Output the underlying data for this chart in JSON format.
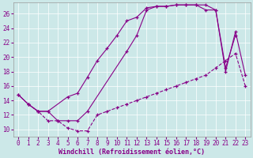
{
  "background_color": "#cce8e8",
  "line_color": "#880088",
  "xlabel": "Windchill (Refroidissement éolien,°C)",
  "xlabel_fontsize": 6,
  "tick_fontsize": 5.5,
  "xlim": [
    -0.5,
    23.5
  ],
  "ylim": [
    9.0,
    27.5
  ],
  "yticks": [
    10,
    12,
    14,
    16,
    18,
    20,
    22,
    24,
    26
  ],
  "xticks": [
    0,
    1,
    2,
    3,
    4,
    5,
    6,
    7,
    8,
    9,
    10,
    11,
    12,
    13,
    14,
    15,
    16,
    17,
    18,
    19,
    20,
    21,
    22,
    23
  ],
  "series_dashed_x": [
    1,
    2,
    3,
    4,
    5,
    6,
    7,
    8,
    9,
    10,
    11,
    12,
    13,
    14,
    15,
    16,
    17,
    18,
    19,
    20,
    21,
    22,
    23
  ],
  "series_dashed_y": [
    13.5,
    12.5,
    11.2,
    11.2,
    10.2,
    9.8,
    9.8,
    12.0,
    12.5,
    13.0,
    13.5,
    14.0,
    14.5,
    15.0,
    15.5,
    16.0,
    16.5,
    17.0,
    17.5,
    18.5,
    19.5,
    20.5,
    16.0
  ],
  "series_solid1_x": [
    0,
    1,
    2,
    3,
    5,
    6,
    7,
    8,
    9,
    10,
    11,
    12,
    13,
    14,
    15,
    16,
    17,
    18,
    19,
    20,
    21,
    22
  ],
  "series_solid1_y": [
    14.8,
    13.5,
    12.5,
    12.5,
    14.5,
    15.0,
    17.2,
    19.5,
    21.2,
    23.0,
    25.0,
    25.5,
    26.8,
    27.0,
    27.0,
    27.2,
    27.2,
    27.2,
    27.2,
    26.5,
    18.5,
    23.0
  ],
  "series_solid2_x": [
    0,
    1,
    2,
    3,
    4,
    5,
    6,
    7,
    11,
    12,
    13,
    14,
    15,
    16,
    17,
    18,
    19,
    20,
    21,
    22,
    23
  ],
  "series_solid2_y": [
    14.8,
    13.5,
    12.5,
    12.5,
    11.2,
    11.2,
    11.2,
    12.5,
    20.8,
    23.0,
    26.5,
    27.0,
    27.0,
    27.2,
    27.2,
    27.2,
    26.5,
    26.5,
    18.0,
    23.5,
    17.5
  ]
}
